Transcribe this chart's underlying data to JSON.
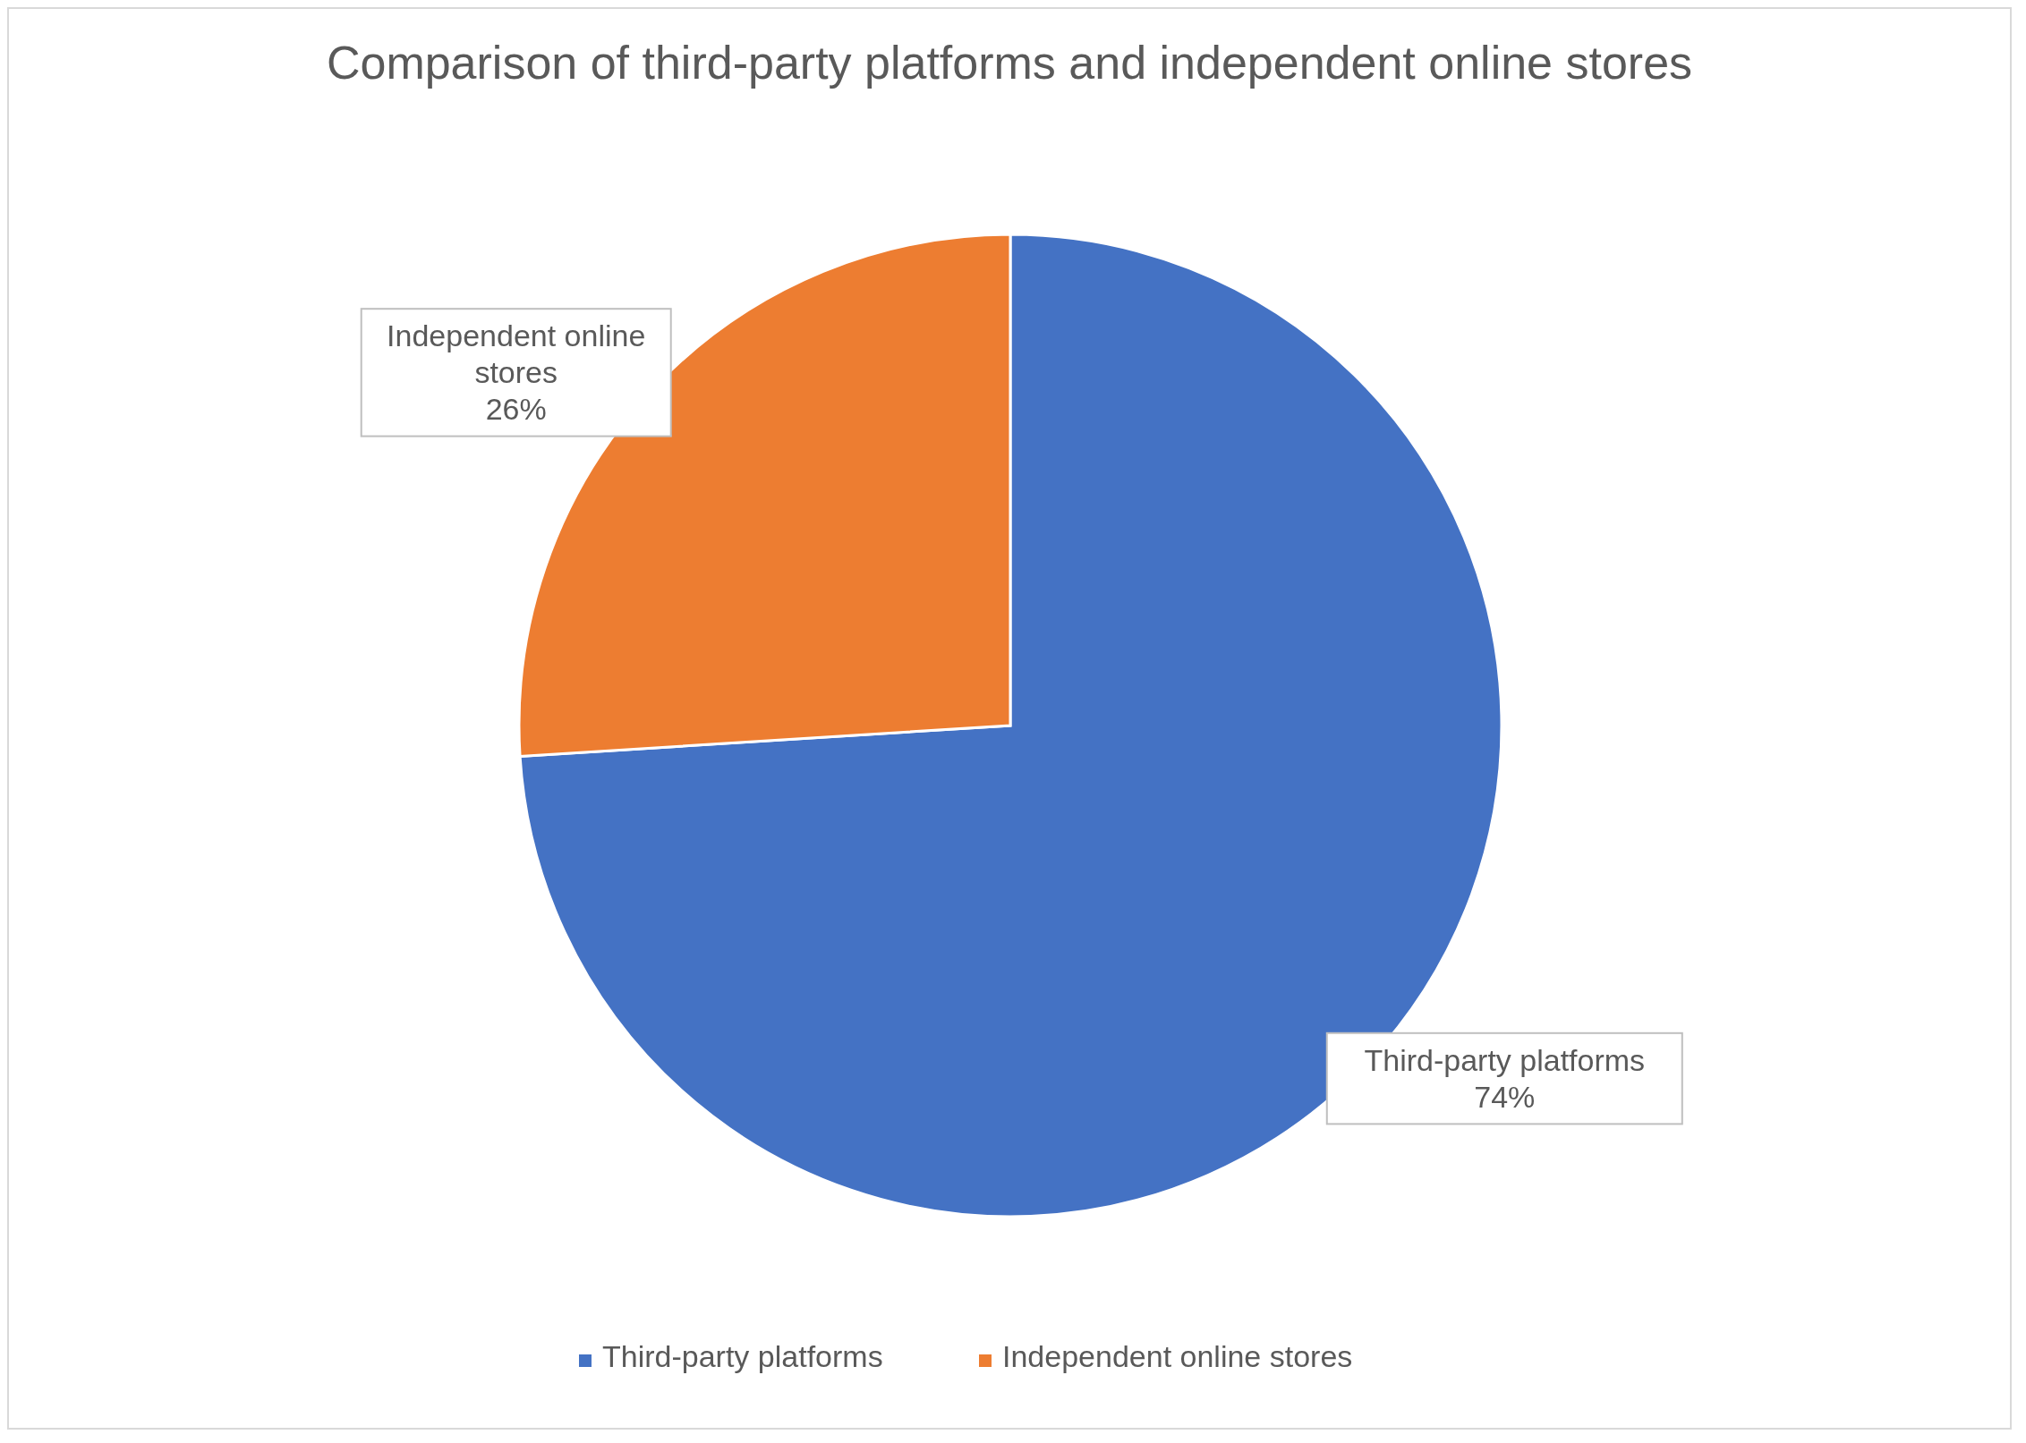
{
  "chart_data": {
    "type": "pie",
    "title": "Comparison of third-party platforms and independent online stores",
    "categories": [
      "Third-party platforms",
      "Independent online stores"
    ],
    "values": [
      74,
      26
    ],
    "colors": [
      "#4472c4",
      "#ed7d31"
    ],
    "value_labels": [
      "74%",
      "26%"
    ],
    "legend": "bottom"
  }
}
